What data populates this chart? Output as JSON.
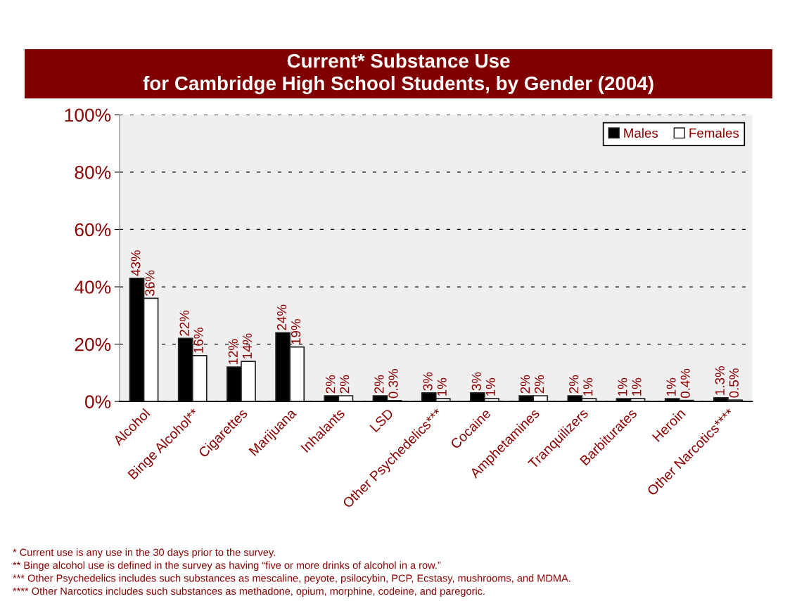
{
  "chart_data": {
    "type": "bar",
    "title": "Current* Substance Use\nfor Cambridge High School Students, by Gender (2004)",
    "categories": [
      "Alcohol",
      "Binge Alcohol**",
      "Cigarettes",
      "Marijuana",
      "Inhalants",
      "LSD",
      "Other Psychedelics***",
      "Cocaine",
      "Amphetamines",
      "Tranquilizers",
      "Barbiturates",
      "Heroin",
      "Other Narcotics****"
    ],
    "series": [
      {
        "name": "Males",
        "color": "#000000",
        "values": [
          43,
          22,
          12,
          24,
          2,
          2,
          3,
          3,
          2,
          2,
          1,
          1,
          1.3
        ],
        "value_labels": [
          "43%",
          "22%",
          "12%",
          "24%",
          "2%",
          "2%",
          "3%",
          "3%",
          "2%",
          "2%",
          "1%",
          "1%",
          "1.3%"
        ]
      },
      {
        "name": "Females",
        "color": "#ffffff",
        "values": [
          36,
          16,
          14,
          19,
          2,
          0.3,
          1,
          1,
          2,
          1,
          1,
          0.4,
          0.5
        ],
        "value_labels": [
          "36%",
          "16%",
          "14%",
          "19%",
          "2%",
          "0.3%",
          "1%",
          "1%",
          "2%",
          "1%",
          "1%",
          "0.4%",
          "0.5%"
        ]
      }
    ],
    "ylim": [
      0,
      100
    ],
    "yticks": [
      {
        "value": 0,
        "label": "0%"
      },
      {
        "value": 20,
        "label": "20%"
      },
      {
        "value": 40,
        "label": "40%"
      },
      {
        "value": 60,
        "label": "60%"
      },
      {
        "value": 80,
        "label": "80%"
      },
      {
        "value": 100,
        "label": "100%"
      }
    ],
    "grid": "y",
    "legend": "top right",
    "annotations": [
      "* Current use is any use in the 30 days prior to the survey.",
      "** Binge alcohol use is defined in the survey as having “five or more drinks of alcohol in a row.”",
      "*** Other Psychedelics includes such substances as mescaline, peyote, psilocybin, PCP, Ecstasy, mushrooms, and MDMA.",
      "**** Other Narcotics includes such substances as methadone, opium, morphine, codeine, and paregoric."
    ]
  }
}
